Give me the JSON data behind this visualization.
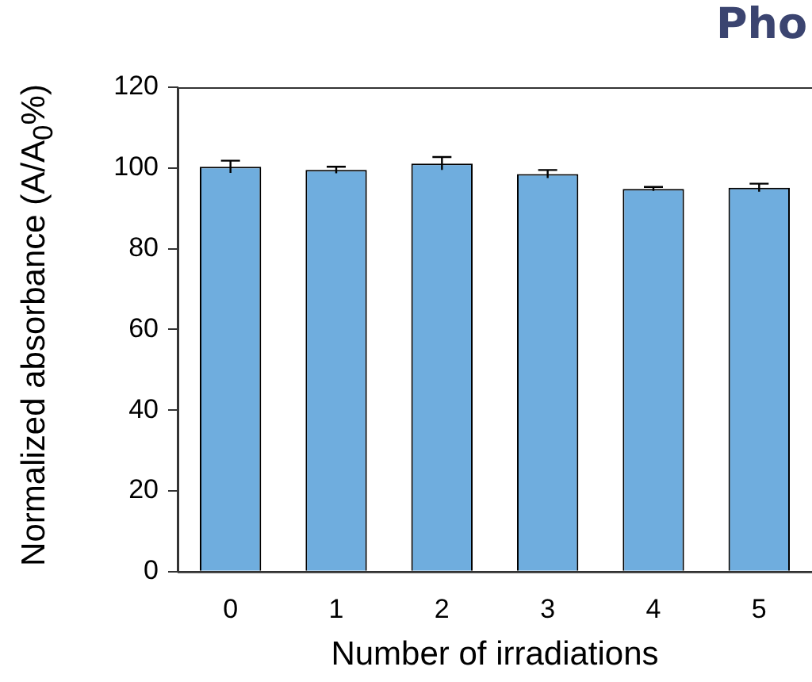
{
  "chart_data": {
    "type": "bar",
    "title": "Pho",
    "xlabel": "Number of irradiations",
    "ylabel": "Normalized absorbance (A/A$_{0}$%)",
    "categories": [
      "0",
      "1",
      "2",
      "3",
      "4",
      "5"
    ],
    "values": [
      100.3,
      99.5,
      101.1,
      98.5,
      94.8,
      95.1
    ],
    "errors": [
      1.5,
      0.8,
      1.6,
      1.0,
      0.5,
      1.0
    ],
    "color": "#6fadde",
    "ylim": [
      0,
      120
    ],
    "yticks": [
      0,
      20,
      40,
      60,
      80,
      100,
      120
    ],
    "grid": false,
    "legend": false
  }
}
